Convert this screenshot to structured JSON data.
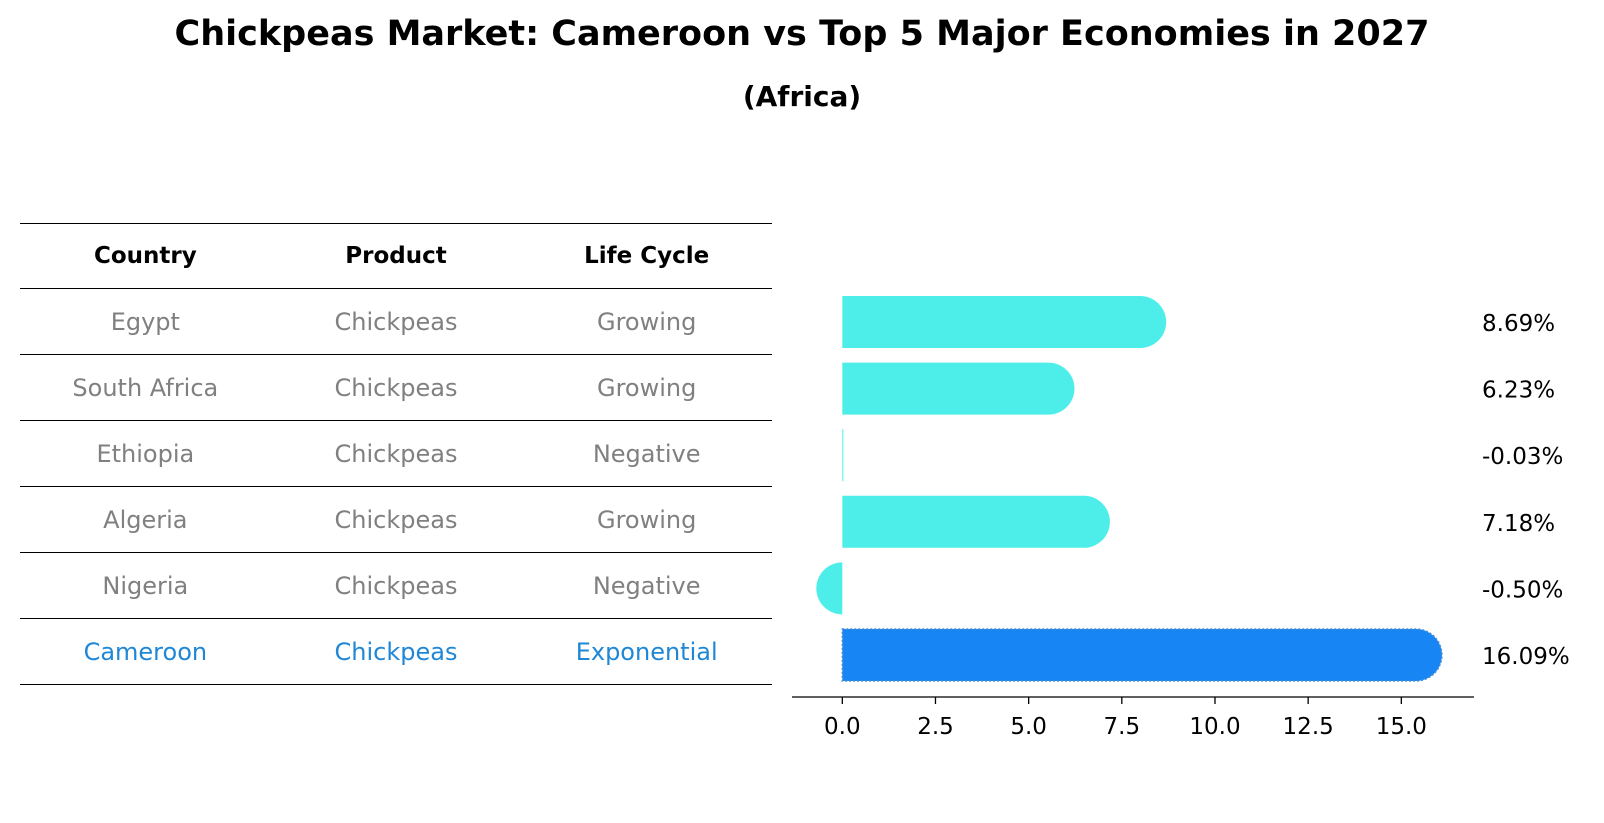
{
  "title": "Chickpeas Market: Cameroon vs Top 5 Major Economies in 2027",
  "subtitle": "(Africa)",
  "table": {
    "headers": [
      "Country",
      "Product",
      "Life Cycle"
    ],
    "rows": [
      {
        "country": "Egypt",
        "product": "Chickpeas",
        "life_cycle": "Growing"
      },
      {
        "country": "South Africa",
        "product": "Chickpeas",
        "life_cycle": "Growing"
      },
      {
        "country": "Ethiopia",
        "product": "Chickpeas",
        "life_cycle": "Negative"
      },
      {
        "country": "Algeria",
        "product": "Chickpeas",
        "life_cycle": "Growing"
      },
      {
        "country": "Nigeria",
        "product": "Chickpeas",
        "life_cycle": "Negative"
      },
      {
        "country": "Cameroon",
        "product": "Chickpeas",
        "life_cycle": "Exponential"
      }
    ]
  },
  "chart_data": {
    "type": "bar",
    "orientation": "horizontal",
    "title": "Chickpeas Market: Cameroon vs Top 5 Major Economies in 2027",
    "subtitle": "(Africa)",
    "categories": [
      "Egypt",
      "South Africa",
      "Ethiopia",
      "Algeria",
      "Nigeria",
      "Cameroon"
    ],
    "values": [
      8.69,
      6.23,
      -0.03,
      7.18,
      -0.5,
      16.09
    ],
    "value_labels": [
      "8.69%",
      "6.23%",
      "-0.03%",
      "7.18%",
      "-0.50%",
      "16.09%"
    ],
    "highlight": "Cameroon",
    "xlim": [
      -1.35,
      16.95
    ],
    "xticks": [
      0.0,
      2.5,
      5.0,
      7.5,
      10.0,
      12.5,
      15.0
    ],
    "xtick_labels": [
      "0.0",
      "2.5",
      "5.0",
      "7.5",
      "10.0",
      "12.5",
      "15.0"
    ],
    "xlabel": "",
    "ylabel": "",
    "grid": false,
    "colors": {
      "default": "#4deeea",
      "highlight": "#1885f5",
      "highlight_text": "#1f87d6"
    }
  }
}
